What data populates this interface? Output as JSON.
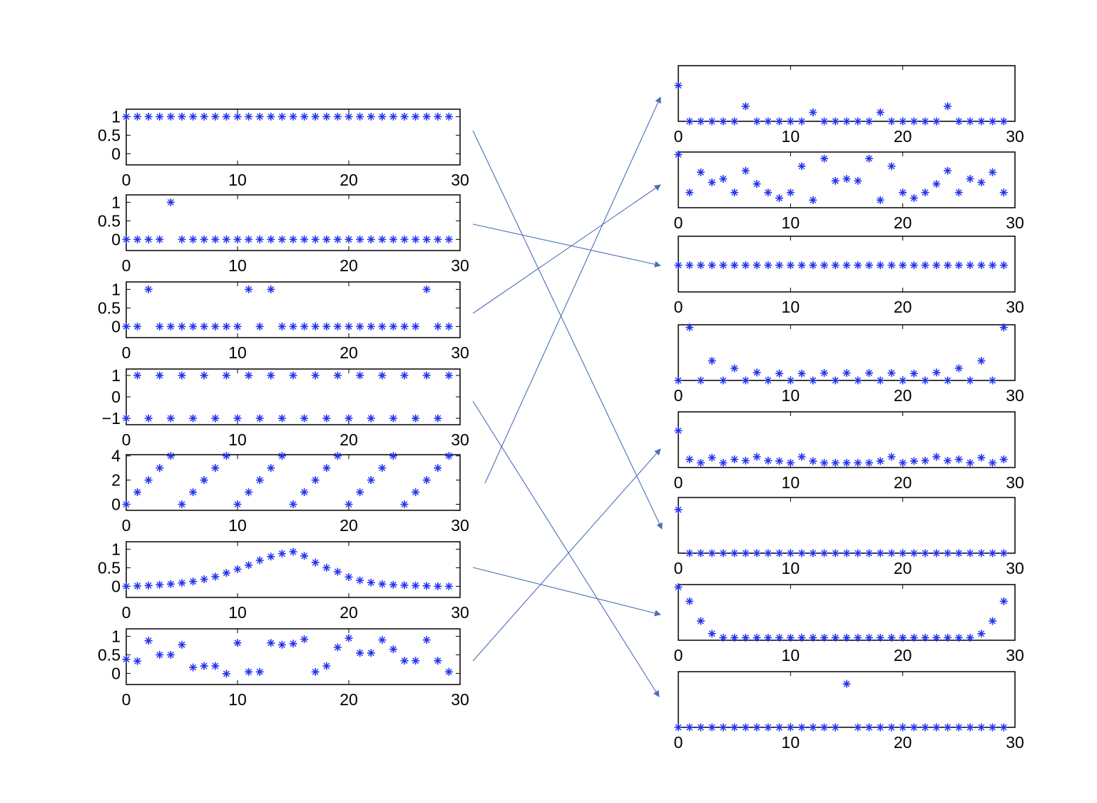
{
  "colors": {
    "marker": "#2233ee",
    "arrow": "#4a6fb5",
    "axes": "#000000"
  },
  "chart_data": [
    {
      "id": "L1",
      "type": "scatter",
      "marker": "*",
      "xlim": [
        0,
        30
      ],
      "ylim": [
        -0.3,
        1.2
      ],
      "xticks": [
        "0",
        "10",
        "20",
        "30"
      ],
      "yticks": [
        1,
        0.5,
        0
      ],
      "ytick_labels": [
        "1",
        "0.5",
        "0"
      ],
      "x": [
        0,
        1,
        2,
        3,
        4,
        5,
        6,
        7,
        8,
        9,
        10,
        11,
        12,
        13,
        14,
        15,
        16,
        17,
        18,
        19,
        20,
        21,
        22,
        23,
        24,
        25,
        26,
        27,
        28,
        29
      ],
      "y": [
        1,
        1,
        1,
        1,
        1,
        1,
        1,
        1,
        1,
        1,
        1,
        1,
        1,
        1,
        1,
        1,
        1,
        1,
        1,
        1,
        1,
        1,
        1,
        1,
        1,
        1,
        1,
        1,
        1,
        1
      ]
    },
    {
      "id": "L2",
      "type": "scatter",
      "marker": "*",
      "xlim": [
        0,
        30
      ],
      "ylim": [
        -0.3,
        1.2
      ],
      "xticks": [
        "0",
        "10",
        "20",
        "30"
      ],
      "yticks": [
        1,
        0.5,
        0
      ],
      "ytick_labels": [
        "1",
        "0.5",
        "0"
      ],
      "x": [
        0,
        1,
        2,
        3,
        4,
        5,
        6,
        7,
        8,
        9,
        10,
        11,
        12,
        13,
        14,
        15,
        16,
        17,
        18,
        19,
        20,
        21,
        22,
        23,
        24,
        25,
        26,
        27,
        28,
        29
      ],
      "y": [
        0,
        0,
        0,
        0,
        1,
        0,
        0,
        0,
        0,
        0,
        0,
        0,
        0,
        0,
        0,
        0,
        0,
        0,
        0,
        0,
        0,
        0,
        0,
        0,
        0,
        0,
        0,
        0,
        0,
        0
      ]
    },
    {
      "id": "L3",
      "type": "scatter",
      "marker": "*",
      "xlim": [
        0,
        30
      ],
      "ylim": [
        -0.3,
        1.2
      ],
      "xticks": [
        "0",
        "10",
        "20",
        "30"
      ],
      "yticks": [
        1,
        0.5,
        0
      ],
      "ytick_labels": [
        "1",
        "0.5",
        "0"
      ],
      "x": [
        0,
        1,
        2,
        3,
        4,
        5,
        6,
        7,
        8,
        9,
        10,
        11,
        12,
        13,
        14,
        15,
        16,
        17,
        18,
        19,
        20,
        21,
        22,
        23,
        24,
        25,
        26,
        27,
        28,
        29
      ],
      "y": [
        0,
        0,
        1,
        0,
        0,
        0,
        0,
        0,
        0,
        0,
        0,
        1,
        0,
        1,
        0,
        0,
        0,
        0,
        0,
        0,
        0,
        0,
        0,
        0,
        0,
        0,
        0,
        1,
        0,
        0
      ]
    },
    {
      "id": "L4",
      "type": "scatter",
      "marker": "*",
      "xlim": [
        0,
        30
      ],
      "ylim": [
        -1.3,
        1.3
      ],
      "xticks": [
        "0",
        "10",
        "20",
        "30"
      ],
      "yticks": [
        1,
        0,
        -1
      ],
      "ytick_labels": [
        "1",
        "0",
        "−1"
      ],
      "x": [
        0,
        1,
        2,
        3,
        4,
        5,
        6,
        7,
        8,
        9,
        10,
        11,
        12,
        13,
        14,
        15,
        16,
        17,
        18,
        19,
        20,
        21,
        22,
        23,
        24,
        25,
        26,
        27,
        28,
        29
      ],
      "y": [
        -1,
        1,
        -1,
        1,
        -1,
        1,
        -1,
        1,
        -1,
        1,
        -1,
        1,
        -1,
        1,
        -1,
        1,
        -1,
        1,
        -1,
        1,
        -1,
        1,
        -1,
        1,
        -1,
        1,
        -1,
        1,
        -1,
        1
      ]
    },
    {
      "id": "L5",
      "type": "scatter",
      "marker": "*",
      "xlim": [
        0,
        30
      ],
      "ylim": [
        -0.5,
        4.1
      ],
      "xticks": [
        "0",
        "10",
        "20",
        "30"
      ],
      "yticks": [
        4,
        2,
        0
      ],
      "ytick_labels": [
        "4",
        "2",
        "0"
      ],
      "x": [
        0,
        1,
        2,
        3,
        4,
        5,
        6,
        7,
        8,
        9,
        10,
        11,
        12,
        13,
        14,
        15,
        16,
        17,
        18,
        19,
        20,
        21,
        22,
        23,
        24,
        25,
        26,
        27,
        28,
        29
      ],
      "y": [
        0,
        1,
        2,
        3,
        4,
        0,
        1,
        2,
        3,
        4,
        0,
        1,
        2,
        3,
        4,
        0,
        1,
        2,
        3,
        4,
        0,
        1,
        2,
        3,
        4,
        0,
        1,
        2,
        3,
        4
      ]
    },
    {
      "id": "L6",
      "type": "scatter",
      "marker": "*",
      "xlim": [
        0,
        30
      ],
      "ylim": [
        -0.3,
        1.2
      ],
      "xticks": [
        "0",
        "10",
        "20",
        "30"
      ],
      "yticks": [
        1,
        0.5,
        0
      ],
      "ytick_labels": [
        "1",
        "0.5",
        "0"
      ],
      "x": [
        0,
        1,
        2,
        3,
        4,
        5,
        6,
        7,
        8,
        9,
        10,
        11,
        12,
        13,
        14,
        15,
        16,
        17,
        18,
        19,
        20,
        21,
        22,
        23,
        24,
        25,
        26,
        27,
        28,
        29
      ],
      "y": [
        0.0,
        0.01,
        0.02,
        0.04,
        0.06,
        0.09,
        0.13,
        0.19,
        0.26,
        0.36,
        0.46,
        0.57,
        0.7,
        0.8,
        0.88,
        0.93,
        0.82,
        0.64,
        0.5,
        0.39,
        0.25,
        0.16,
        0.1,
        0.06,
        0.04,
        0.03,
        0.02,
        0.01,
        0.0,
        0.0
      ]
    },
    {
      "id": "L7",
      "type": "scatter",
      "marker": "*",
      "xlim": [
        0,
        30
      ],
      "ylim": [
        -0.3,
        1.2
      ],
      "xticks": [
        "0",
        "10",
        "20",
        "30"
      ],
      "yticks": [
        1,
        0.5,
        0
      ],
      "ytick_labels": [
        "1",
        "0.5",
        "0"
      ],
      "x": [
        0,
        1,
        2,
        3,
        4,
        5,
        6,
        7,
        8,
        9,
        10,
        11,
        12,
        13,
        14,
        15,
        16,
        17,
        18,
        19,
        20,
        21,
        22,
        23,
        24,
        25,
        26,
        27,
        28,
        29
      ],
      "y": [
        0.38,
        0.33,
        0.88,
        0.5,
        0.5,
        0.77,
        0.16,
        0.2,
        0.2,
        -0.01,
        0.82,
        0.04,
        0.04,
        0.82,
        0.77,
        0.8,
        0.92,
        0.04,
        0.2,
        0.7,
        0.95,
        0.55,
        0.55,
        0.9,
        0.65,
        0.34,
        0.34,
        0.9,
        0.34,
        0.04
      ]
    },
    {
      "id": "R1",
      "type": "scatter",
      "marker": "*",
      "xlim": [
        0,
        30
      ],
      "ylim": [
        0,
        1.55
      ],
      "xticks": [
        "0",
        "10",
        "20",
        "30"
      ],
      "x": [
        0,
        1,
        2,
        3,
        4,
        5,
        6,
        7,
        8,
        9,
        10,
        11,
        12,
        13,
        14,
        15,
        16,
        17,
        18,
        19,
        20,
        21,
        22,
        23,
        24,
        25,
        26,
        27,
        28,
        29
      ],
      "y": [
        1,
        0,
        0,
        0,
        0,
        0,
        0.42,
        0,
        0,
        0,
        0,
        0,
        0.25,
        0,
        0,
        0,
        0,
        0,
        0.25,
        0,
        0,
        0,
        0,
        0,
        0.42,
        0,
        0,
        0,
        0,
        0
      ]
    },
    {
      "id": "R2",
      "type": "scatter",
      "marker": "*",
      "xlim": [
        0,
        30
      ],
      "ylim": [
        -0.05,
        1.05
      ],
      "xticks": [
        "0",
        "10",
        "20",
        "30"
      ],
      "x": [
        0,
        1,
        2,
        3,
        4,
        5,
        6,
        7,
        8,
        9,
        10,
        11,
        12,
        13,
        14,
        15,
        16,
        17,
        18,
        19,
        20,
        21,
        22,
        23,
        24,
        25,
        26,
        27,
        28,
        29
      ],
      "y": [
        1.0,
        0.25,
        0.65,
        0.45,
        0.52,
        0.25,
        0.68,
        0.42,
        0.25,
        0.14,
        0.25,
        0.77,
        0.1,
        0.92,
        0.48,
        0.52,
        0.48,
        0.92,
        0.1,
        0.77,
        0.25,
        0.14,
        0.25,
        0.42,
        0.68,
        0.25,
        0.52,
        0.45,
        0.65,
        0.25
      ]
    },
    {
      "id": "R3",
      "type": "scatter",
      "marker": "*",
      "xlim": [
        0,
        30
      ],
      "ylim": [
        0,
        1.25
      ],
      "xticks": [
        "0",
        "10",
        "20",
        "30"
      ],
      "x": [
        0,
        1,
        2,
        3,
        4,
        5,
        6,
        7,
        8,
        9,
        10,
        11,
        12,
        13,
        14,
        15,
        16,
        17,
        18,
        19,
        20,
        21,
        22,
        23,
        24,
        25,
        26,
        27,
        28,
        29
      ],
      "y": [
        0.6,
        0.6,
        0.6,
        0.6,
        0.6,
        0.6,
        0.6,
        0.6,
        0.6,
        0.6,
        0.6,
        0.6,
        0.6,
        0.6,
        0.6,
        0.6,
        0.6,
        0.6,
        0.6,
        0.6,
        0.6,
        0.6,
        0.6,
        0.6,
        0.6,
        0.6,
        0.6,
        0.6,
        0.6,
        0.6
      ]
    },
    {
      "id": "R4",
      "type": "scatter",
      "marker": "*",
      "xlim": [
        0,
        30
      ],
      "ylim": [
        0,
        1.05
      ],
      "xticks": [
        "0",
        "10",
        "20",
        "30"
      ],
      "x": [
        0,
        1,
        2,
        3,
        4,
        5,
        6,
        7,
        8,
        9,
        10,
        11,
        12,
        13,
        14,
        15,
        16,
        17,
        18,
        19,
        20,
        21,
        22,
        23,
        24,
        25,
        26,
        27,
        28,
        29
      ],
      "y": [
        0,
        1,
        0,
        0.37,
        0,
        0.23,
        0,
        0.15,
        0,
        0.13,
        0,
        0.13,
        0,
        0.14,
        0,
        0.14,
        0,
        0.14,
        0,
        0.14,
        0,
        0.13,
        0,
        0.15,
        0,
        0.23,
        0,
        0.37,
        0,
        1
      ]
    },
    {
      "id": "R5",
      "type": "scatter",
      "marker": "*",
      "xlim": [
        0,
        30
      ],
      "ylim": [
        -0.05,
        1.25
      ],
      "xticks": [
        "0",
        "10",
        "20",
        "30"
      ],
      "x": [
        0,
        1,
        2,
        3,
        4,
        5,
        6,
        7,
        8,
        9,
        10,
        11,
        12,
        13,
        14,
        15,
        16,
        17,
        18,
        19,
        20,
        21,
        22,
        23,
        24,
        25,
        26,
        27,
        28,
        29
      ],
      "y": [
        0.81,
        0.14,
        0.06,
        0.18,
        0.06,
        0.14,
        0.11,
        0.2,
        0.11,
        0.1,
        0.06,
        0.2,
        0.1,
        0.06,
        0.06,
        0.06,
        0.06,
        0.06,
        0.1,
        0.2,
        0.06,
        0.1,
        0.11,
        0.2,
        0.11,
        0.14,
        0.06,
        0.18,
        0.06,
        0.14
      ]
    },
    {
      "id": "R6",
      "type": "scatter",
      "marker": "*",
      "xlim": [
        0,
        30
      ],
      "ylim": [
        0,
        1.28
      ],
      "xticks": [
        "0",
        "10",
        "20",
        "30"
      ],
      "x": [
        0,
        1,
        2,
        3,
        4,
        5,
        6,
        7,
        8,
        9,
        10,
        11,
        12,
        13,
        14,
        15,
        16,
        17,
        18,
        19,
        20,
        21,
        22,
        23,
        24,
        25,
        26,
        27,
        28,
        29
      ],
      "y": [
        1,
        0,
        0,
        0,
        0,
        0,
        0,
        0,
        0,
        0,
        0,
        0,
        0,
        0,
        0,
        0,
        0,
        0,
        0,
        0,
        0,
        0,
        0,
        0,
        0,
        0,
        0,
        0,
        0,
        0
      ]
    },
    {
      "id": "R7",
      "type": "scatter",
      "marker": "*",
      "xlim": [
        0,
        30
      ],
      "ylim": [
        -0.05,
        1.05
      ],
      "xticks": [
        "0",
        "10",
        "20",
        "30"
      ],
      "x": [
        0,
        1,
        2,
        3,
        4,
        5,
        6,
        7,
        8,
        9,
        10,
        11,
        12,
        13,
        14,
        15,
        16,
        17,
        18,
        19,
        20,
        21,
        22,
        23,
        24,
        25,
        26,
        27,
        28,
        29
      ],
      "y": [
        1.0,
        0.72,
        0.33,
        0.08,
        0,
        0,
        0,
        0,
        0,
        0,
        0,
        0,
        0,
        0,
        0,
        0,
        0,
        0,
        0,
        0,
        0,
        0,
        0,
        0,
        0,
        0,
        0,
        0.08,
        0.33,
        0.72
      ]
    },
    {
      "id": "R8",
      "type": "scatter",
      "marker": "*",
      "xlim": [
        0,
        30
      ],
      "ylim": [
        0,
        1.28
      ],
      "xticks": [
        "0",
        "10",
        "20",
        "30"
      ],
      "x": [
        0,
        1,
        2,
        3,
        4,
        5,
        6,
        7,
        8,
        9,
        10,
        11,
        12,
        13,
        14,
        15,
        16,
        17,
        18,
        19,
        20,
        21,
        22,
        23,
        24,
        25,
        26,
        27,
        28,
        29
      ],
      "y": [
        0,
        0,
        0,
        0,
        0,
        0,
        0,
        0,
        0,
        0,
        0,
        0,
        0,
        0,
        0,
        1,
        0,
        0,
        0,
        0,
        0,
        0,
        0,
        0,
        0,
        0,
        0,
        0,
        0,
        0
      ]
    }
  ],
  "connections": [
    {
      "from": "L1",
      "to": "R6"
    },
    {
      "from": "L2",
      "to": "R3"
    },
    {
      "from": "L3",
      "to": "R2"
    },
    {
      "from": "L4",
      "to": "R8"
    },
    {
      "from": "L5",
      "to": "R1"
    },
    {
      "from": "L6",
      "to": "R7"
    },
    {
      "from": "L7",
      "to": "R5"
    }
  ]
}
